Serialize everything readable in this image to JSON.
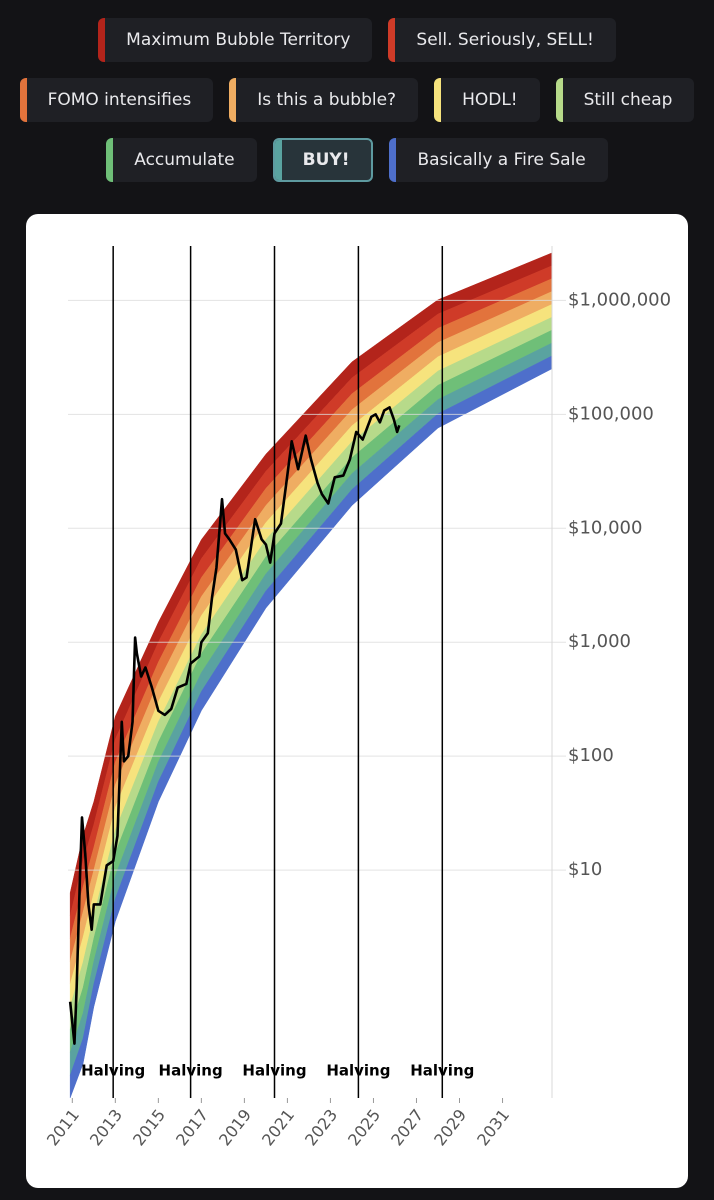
{
  "chart_data": {
    "type": "rainbow",
    "bands": [
      {
        "name": "Maximum Bubble Territory",
        "color": "#b3241b",
        "values": [
          6.31,
          20,
          39.8,
          224,
          1496,
          7943,
          44670,
          288400,
          1012000,
          2612000
        ]
      },
      {
        "name": "Sell. Seriously, SELL!",
        "color": "#cf3b28",
        "values": [
          3.98,
          12,
          25.1,
          141,
          1000,
          5412,
          31620,
          208900,
          758600,
          2014000
        ]
      },
      {
        "name": "FOMO intensifies",
        "color": "#e2733c",
        "values": [
          2.51,
          7.17,
          15.8,
          89.1,
          668,
          3688,
          22390,
          151400,
          568900,
          1552000
        ]
      },
      {
        "name": "Is this a bubble?",
        "color": "#efad62",
        "values": [
          1.58,
          4.3,
          10,
          56.2,
          447,
          2512,
          15850,
          109600,
          426600,
          1197000
        ]
      },
      {
        "name": "HODL!",
        "color": "#f6e37d",
        "values": [
          1,
          2.58,
          6.31,
          35.5,
          299,
          1711,
          11220,
          79430,
          319900,
          922600
        ]
      },
      {
        "name": "Still cheap",
        "color": "#b7da8a",
        "values": [
          0.631,
          1.55,
          3.98,
          22.4,
          200,
          1166,
          7943,
          57540,
          239900,
          711200
        ]
      },
      {
        "name": "Accumulate",
        "color": "#6fbf78",
        "values": [
          0.398,
          0.927,
          2.51,
          14.1,
          133,
          794,
          5623,
          41690,
          179900,
          548300
        ]
      },
      {
        "name": "BUY!",
        "color": "#5aa3a0",
        "values": [
          0.251,
          0.555,
          1.58,
          8.91,
          89.1,
          541,
          3981,
          30200,
          134900,
          422700
        ]
      },
      {
        "name": "Basically a Fire Sale",
        "color": "#4e6fcb",
        "values": [
          0.158,
          0.333,
          1,
          5.62,
          59.6,
          369,
          2818,
          21880,
          101200,
          325800
        ]
      }
    ],
    "floor": [
      0.1,
      0.2,
      0.631,
      3.55,
      39.8,
      251,
      1995,
      15850,
      75860,
      251200
    ],
    "band_x": [
      2010.9,
      2011.5,
      2012,
      2013,
      2015,
      2017,
      2020,
      2024,
      2028,
      2033.3
    ],
    "selected_band": 7,
    "price": {
      "color": "#000000",
      "x": [
        2010.9,
        2011.1,
        2011.2,
        2011.35,
        2011.45,
        2011.6,
        2011.75,
        2011.9,
        2012.0,
        2012.3,
        2012.6,
        2012.9,
        2013.1,
        2013.3,
        2013.4,
        2013.6,
        2013.8,
        2013.92,
        2014.0,
        2014.2,
        2014.4,
        2014.7,
        2015.0,
        2015.3,
        2015.6,
        2015.9,
        2016.3,
        2016.5,
        2016.9,
        2017.0,
        2017.3,
        2017.5,
        2017.7,
        2017.96,
        2018.1,
        2018.3,
        2018.6,
        2018.9,
        2019.1,
        2019.4,
        2019.5,
        2019.8,
        2020.0,
        2020.2,
        2020.4,
        2020.7,
        2020.95,
        2021.2,
        2021.5,
        2021.85,
        2022.1,
        2022.4,
        2022.6,
        2022.9,
        2023.2,
        2023.6,
        2023.9,
        2024.2,
        2024.5,
        2024.9,
        2025.1,
        2025.3,
        2025.5,
        2025.75,
        2025.95,
        2026.1,
        2026.2
      ],
      "values": [
        0.7,
        0.3,
        0.9,
        8,
        29,
        14,
        5,
        3,
        5,
        5,
        11,
        12,
        20,
        200,
        90,
        100,
        200,
        1100,
        800,
        500,
        600,
        400,
        250,
        230,
        260,
        400,
        430,
        650,
        750,
        1000,
        1200,
        2500,
        4500,
        18000,
        9000,
        8000,
        6500,
        3500,
        3700,
        9000,
        12000,
        8000,
        7200,
        5000,
        9000,
        11000,
        25000,
        58000,
        33000,
        65000,
        40000,
        25000,
        20000,
        16500,
        28000,
        29000,
        40000,
        70000,
        60000,
        95000,
        100000,
        85000,
        108000,
        115000,
        90000,
        70000,
        80000
      ]
    },
    "halvings": {
      "x": [
        2012.9,
        2016.5,
        2020.4,
        2024.3,
        2028.2
      ],
      "labels": [
        "Halving",
        "Halving",
        "Halving",
        "Halving",
        "Halving"
      ]
    },
    "xlim": [
      2010.8,
      2033.3
    ],
    "xticks": [
      2011,
      2013,
      2015,
      2017,
      2019,
      2021,
      2023,
      2025,
      2027,
      2029,
      2031
    ],
    "ylim": [
      0.1,
      3000000
    ],
    "yticks": [
      {
        "value": 10,
        "label": "$10"
      },
      {
        "value": 100,
        "label": "$100"
      },
      {
        "value": 1000,
        "label": "$1,000"
      },
      {
        "value": 10000,
        "label": "$10,000"
      },
      {
        "value": 100000,
        "label": "$100,000"
      },
      {
        "value": 1000000,
        "label": "$1,000,000"
      }
    ],
    "log_scale": true,
    "grid": true
  }
}
